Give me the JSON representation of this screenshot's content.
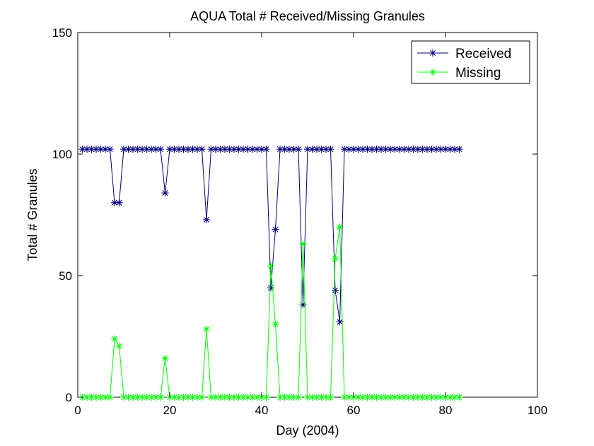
{
  "chart_data": {
    "type": "line",
    "title": "AQUA Total # Received/Missing Granules",
    "xlabel": "Day (2004)",
    "ylabel": "Total # Granules",
    "xlim": [
      0,
      100
    ],
    "ylim": [
      0,
      150
    ],
    "xticks": [
      "0",
      "20",
      "40",
      "60",
      "80",
      "100"
    ],
    "yticks": [
      "0",
      "50",
      "100",
      "150"
    ],
    "grid": false,
    "legend_position": "top-right",
    "marker": "asterisk",
    "x": [
      1,
      2,
      3,
      4,
      5,
      6,
      7,
      8,
      9,
      10,
      11,
      12,
      13,
      14,
      15,
      16,
      17,
      18,
      19,
      20,
      21,
      22,
      23,
      24,
      25,
      26,
      27,
      28,
      29,
      30,
      31,
      32,
      33,
      34,
      35,
      36,
      37,
      38,
      39,
      40,
      41,
      42,
      43,
      44,
      45,
      46,
      47,
      48,
      49,
      50,
      51,
      52,
      53,
      54,
      55,
      56,
      57,
      58,
      59,
      60,
      61,
      62,
      63,
      64,
      65,
      66,
      67,
      68,
      69,
      70,
      71,
      72,
      73,
      74,
      75,
      76,
      77,
      78,
      79,
      80,
      81,
      82,
      83
    ],
    "series": [
      {
        "name": "Received",
        "color": "#00007f",
        "values": [
          102,
          102,
          102,
          102,
          102,
          102,
          102,
          80,
          80,
          102,
          102,
          102,
          102,
          102,
          102,
          102,
          102,
          102,
          84,
          102,
          102,
          102,
          102,
          102,
          102,
          102,
          102,
          73,
          102,
          102,
          102,
          102,
          102,
          102,
          102,
          102,
          102,
          102,
          102,
          102,
          102,
          45,
          69,
          102,
          102,
          102,
          102,
          102,
          38,
          102,
          102,
          102,
          102,
          102,
          102,
          44,
          31,
          102,
          102,
          102,
          102,
          102,
          102,
          102,
          102,
          102,
          102,
          102,
          102,
          102,
          102,
          102,
          102,
          102,
          102,
          102,
          102,
          102,
          102,
          102,
          102,
          102,
          102
        ]
      },
      {
        "name": "Missing",
        "color": "#00ff00",
        "values": [
          0,
          0,
          0,
          0,
          0,
          0,
          0,
          24,
          21,
          0,
          0,
          0,
          0,
          0,
          0,
          0,
          0,
          0,
          16,
          0,
          0,
          0,
          0,
          0,
          0,
          0,
          0,
          28,
          0,
          0,
          0,
          0,
          0,
          0,
          0,
          0,
          0,
          0,
          0,
          0,
          0,
          54,
          30,
          0,
          0,
          0,
          0,
          0,
          63,
          0,
          0,
          0,
          0,
          0,
          0,
          57,
          70,
          0,
          0,
          0,
          0,
          0,
          0,
          0,
          0,
          0,
          0,
          0,
          0,
          0,
          0,
          0,
          0,
          0,
          0,
          0,
          0,
          0,
          0,
          0,
          0,
          0,
          0
        ]
      }
    ]
  }
}
